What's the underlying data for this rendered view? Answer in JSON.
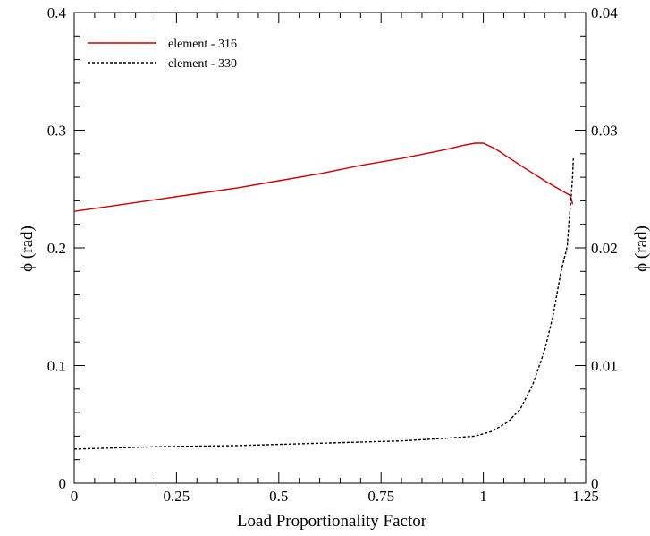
{
  "chart_data": {
    "type": "line",
    "xlabel": "Load Proportionality Factor",
    "ylabel_left": "ϕ (rad)",
    "ylabel_right": "ϕ (rad)",
    "xlim": [
      0,
      1.25
    ],
    "ylim_left": [
      0,
      0.4
    ],
    "ylim_right": [
      0,
      0.04
    ],
    "x_ticks": [
      0,
      0.25,
      0.5,
      0.75,
      1,
      1.25
    ],
    "x_tick_labels": [
      "0",
      "0.25",
      "0.5",
      "0.75",
      "1",
      "1.25"
    ],
    "y_left_ticks": [
      0,
      0.1,
      0.2,
      0.3,
      0.4
    ],
    "y_left_tick_labels": [
      "0",
      "0.1",
      "0.2",
      "0.3",
      "0.4"
    ],
    "y_right_ticks": [
      0,
      0.01,
      0.02,
      0.03,
      0.04
    ],
    "y_right_tick_labels": [
      "0",
      "0.01",
      "0.02",
      "0.03",
      "0.04"
    ],
    "grid": false,
    "legend_position": "top-left",
    "series": [
      {
        "name": "element - 316",
        "axis": "left",
        "color": "#cc0000",
        "dash": "solid",
        "x": [
          0,
          0.1,
          0.2,
          0.3,
          0.4,
          0.5,
          0.6,
          0.7,
          0.8,
          0.9,
          0.95,
          0.98,
          1.0,
          1.03,
          1.06,
          1.1,
          1.15,
          1.19,
          1.21,
          1.215,
          1.218
        ],
        "y": [
          0.231,
          0.236,
          0.241,
          0.246,
          0.251,
          0.257,
          0.263,
          0.27,
          0.276,
          0.283,
          0.287,
          0.289,
          0.289,
          0.284,
          0.277,
          0.268,
          0.257,
          0.249,
          0.245,
          0.242,
          0.237
        ]
      },
      {
        "name": "element - 330",
        "axis": "right",
        "color": "#000000",
        "dash": "dashed",
        "x": [
          0,
          0.2,
          0.4,
          0.6,
          0.8,
          0.9,
          0.98,
          1.02,
          1.06,
          1.09,
          1.12,
          1.15,
          1.17,
          1.19,
          1.205,
          1.21,
          1.215,
          1.218,
          1.22
        ],
        "y": [
          0.0029,
          0.0031,
          0.0032,
          0.0034,
          0.0036,
          0.0038,
          0.004,
          0.0044,
          0.0052,
          0.0063,
          0.0083,
          0.0113,
          0.0142,
          0.018,
          0.0201,
          0.0225,
          0.0245,
          0.026,
          0.0276
        ]
      }
    ]
  }
}
